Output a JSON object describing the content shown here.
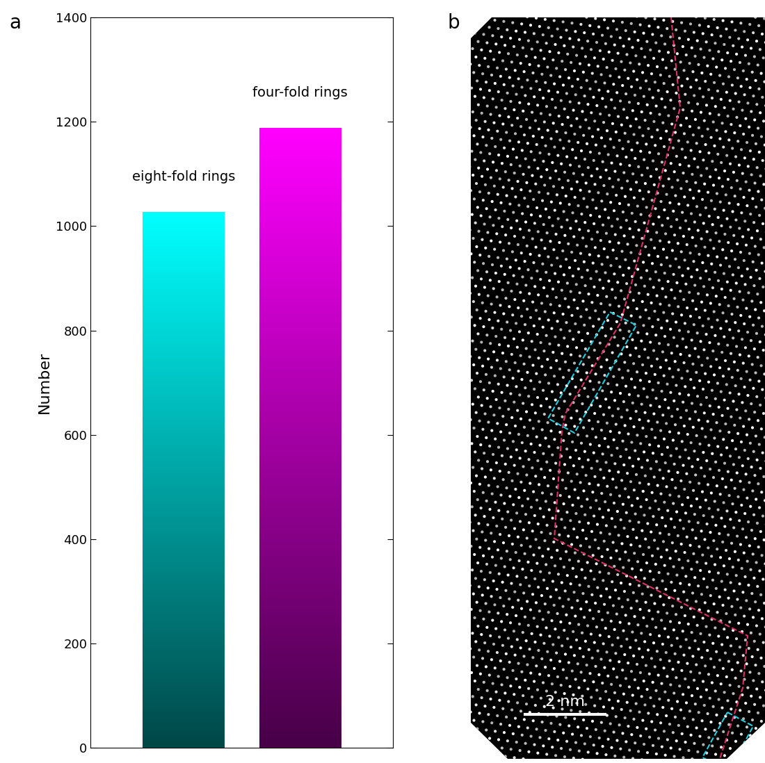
{
  "chart_data": {
    "type": "bar",
    "categories": [
      "eight-fold rings",
      "four-fold rings"
    ],
    "values": [
      1027,
      1188
    ],
    "colors": [
      "#00ffff",
      "#ff00ff"
    ],
    "y_label": "Number",
    "ylim": [
      0,
      1400
    ],
    "yticks": [
      0,
      200,
      400,
      600,
      800,
      1000,
      1200,
      1400
    ],
    "tick_labels": "y",
    "grid": false
  },
  "panel_labels": [
    "a",
    "b"
  ],
  "image": {
    "scale_bar_label": "2 nm"
  }
}
